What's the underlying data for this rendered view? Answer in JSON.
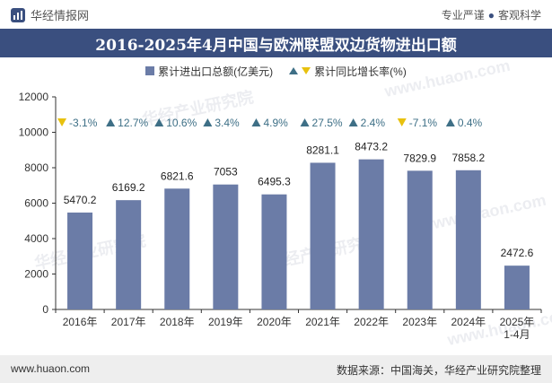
{
  "header": {
    "brand": "华经情报网",
    "tagline_left": "专业严谨",
    "tagline_sep": "●",
    "tagline_right": "客观科学"
  },
  "title": "2016-2025年4月中国与欧洲联盟双边货物进出口额",
  "legend": {
    "bar_label": "累计进出口总额(亿美元)",
    "growth_label": "累计同比增长率(%)"
  },
  "footer": {
    "site": "www.huaon.com",
    "source": "数据来源：中国海关，华经产业研究院整理"
  },
  "colors": {
    "bar": "#6b7ca7",
    "up": "#3e6f86",
    "down": "#e8c10e",
    "title_bg": "#3a4f7f"
  },
  "chart_data": {
    "type": "bar",
    "categories": [
      "2016年",
      "2017年",
      "2018年",
      "2019年",
      "2020年",
      "2021年",
      "2022年",
      "2023年",
      "2024年",
      "2025年\n1-4月"
    ],
    "series": [
      {
        "name": "累计进出口总额(亿美元)",
        "values": [
          5470.2,
          6169.2,
          6821.6,
          7053,
          6495.3,
          8281.1,
          8473.2,
          7829.9,
          7858.2,
          2472.6
        ]
      },
      {
        "name": "累计同比增长率(%)",
        "values": [
          -3.1,
          12.7,
          10.6,
          3.4,
          4.9,
          27.5,
          2.4,
          -7.1,
          0.4,
          null
        ]
      }
    ],
    "value_labels": [
      "5470.2",
      "6169.2",
      "6821.6",
      "7053",
      "6495.3",
      "8281.1",
      "8473.2",
      "7829.9",
      "7858.2",
      "2472.6"
    ],
    "growth_labels": [
      "-3.1%",
      "12.7%",
      "10.6%",
      "3.4%",
      "4.9%",
      "27.5%",
      "2.4%",
      "-7.1%",
      "0.4%",
      ""
    ],
    "y_ticks": [
      "0",
      "2000",
      "4000",
      "6000",
      "8000",
      "10000",
      "12000"
    ],
    "ylim": [
      0,
      12000
    ],
    "grid": false
  },
  "watermarks": [
    "华经产业研究院",
    "www.huaon.com"
  ]
}
